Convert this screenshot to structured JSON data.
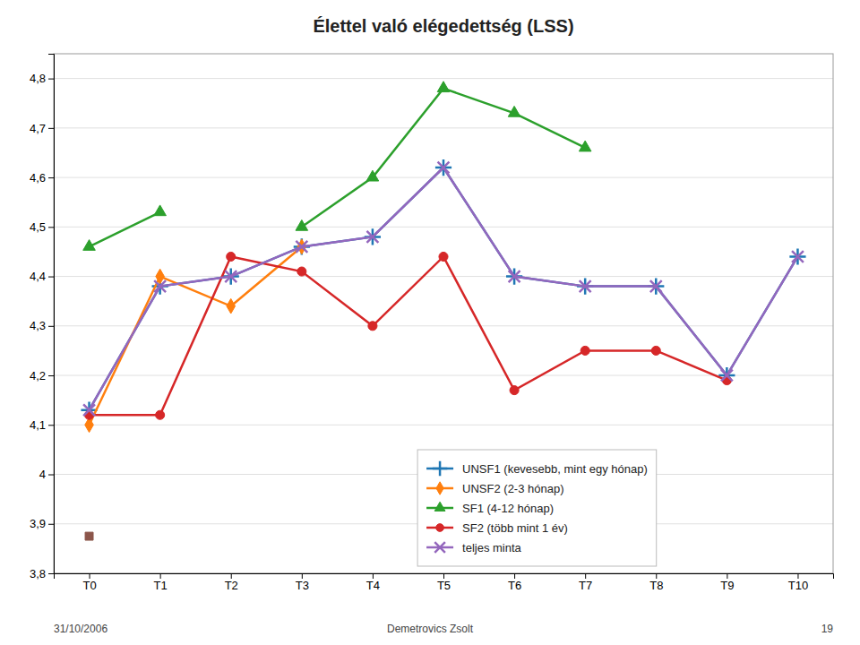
{
  "chart_data": {
    "type": "line",
    "title": "Élettel való elégedettség (LSS)",
    "categories": [
      "T0",
      "T1",
      "T2",
      "T3",
      "T4",
      "T5",
      "T6",
      "T7",
      "T8",
      "T9",
      "T10"
    ],
    "series": [
      {
        "name": "UNSF1 (kevesebb, mint egy hónap)",
        "marker": "plus",
        "values": [
          4.13,
          4.38,
          4.4,
          4.46,
          4.48,
          4.62,
          4.4,
          4.38,
          4.38,
          4.2,
          4.44
        ]
      },
      {
        "name": "UNSF2 (2-3 hónap)",
        "marker": "diamond",
        "values": [
          4.1,
          4.4,
          4.34,
          4.46,
          null,
          null,
          null,
          null,
          null,
          null,
          null
        ]
      },
      {
        "name": "SF1 (4-12 hónap)",
        "marker": "triangle",
        "values": [
          4.46,
          4.53,
          null,
          4.5,
          4.6,
          4.78,
          4.73,
          4.66,
          null,
          null,
          null
        ]
      },
      {
        "name": "SF2 (több mint 1 év)",
        "marker": "circle",
        "values": [
          4.12,
          4.12,
          4.44,
          4.41,
          4.3,
          4.44,
          4.17,
          4.25,
          4.25,
          4.19,
          null
        ]
      },
      {
        "name": "teljes minta",
        "marker": "x",
        "values": [
          4.13,
          4.38,
          4.4,
          4.46,
          4.48,
          4.62,
          4.4,
          4.38,
          4.38,
          4.2,
          4.44
        ]
      },
      {
        "type": "scatter",
        "marker": "square",
        "values": [
          3.875,
          null,
          null,
          null,
          null,
          null,
          null,
          null,
          null,
          null,
          null
        ]
      }
    ],
    "ylim": [
      3.8,
      4.85
    ],
    "yticks": [
      {
        "value": 3.8,
        "label": "3,8"
      },
      {
        "value": 3.9,
        "label": "3,9"
      },
      4,
      {
        "value": 4.1,
        "label": "4,1"
      },
      {
        "value": 4.2,
        "label": "4,2"
      },
      {
        "value": 4.3,
        "label": "4,3"
      },
      {
        "value": 4.4,
        "label": "4,4"
      },
      {
        "value": 4.5,
        "label": "4,5"
      },
      {
        "value": 4.6,
        "label": "4,6"
      },
      {
        "value": 4.7,
        "label": "4,7"
      },
      {
        "value": 4.8,
        "label": "4,8"
      }
    ],
    "grid": true,
    "legend": "lower center",
    "annotations": [
      "31/10/2006",
      "Demetrovics Zsolt",
      "19"
    ]
  }
}
